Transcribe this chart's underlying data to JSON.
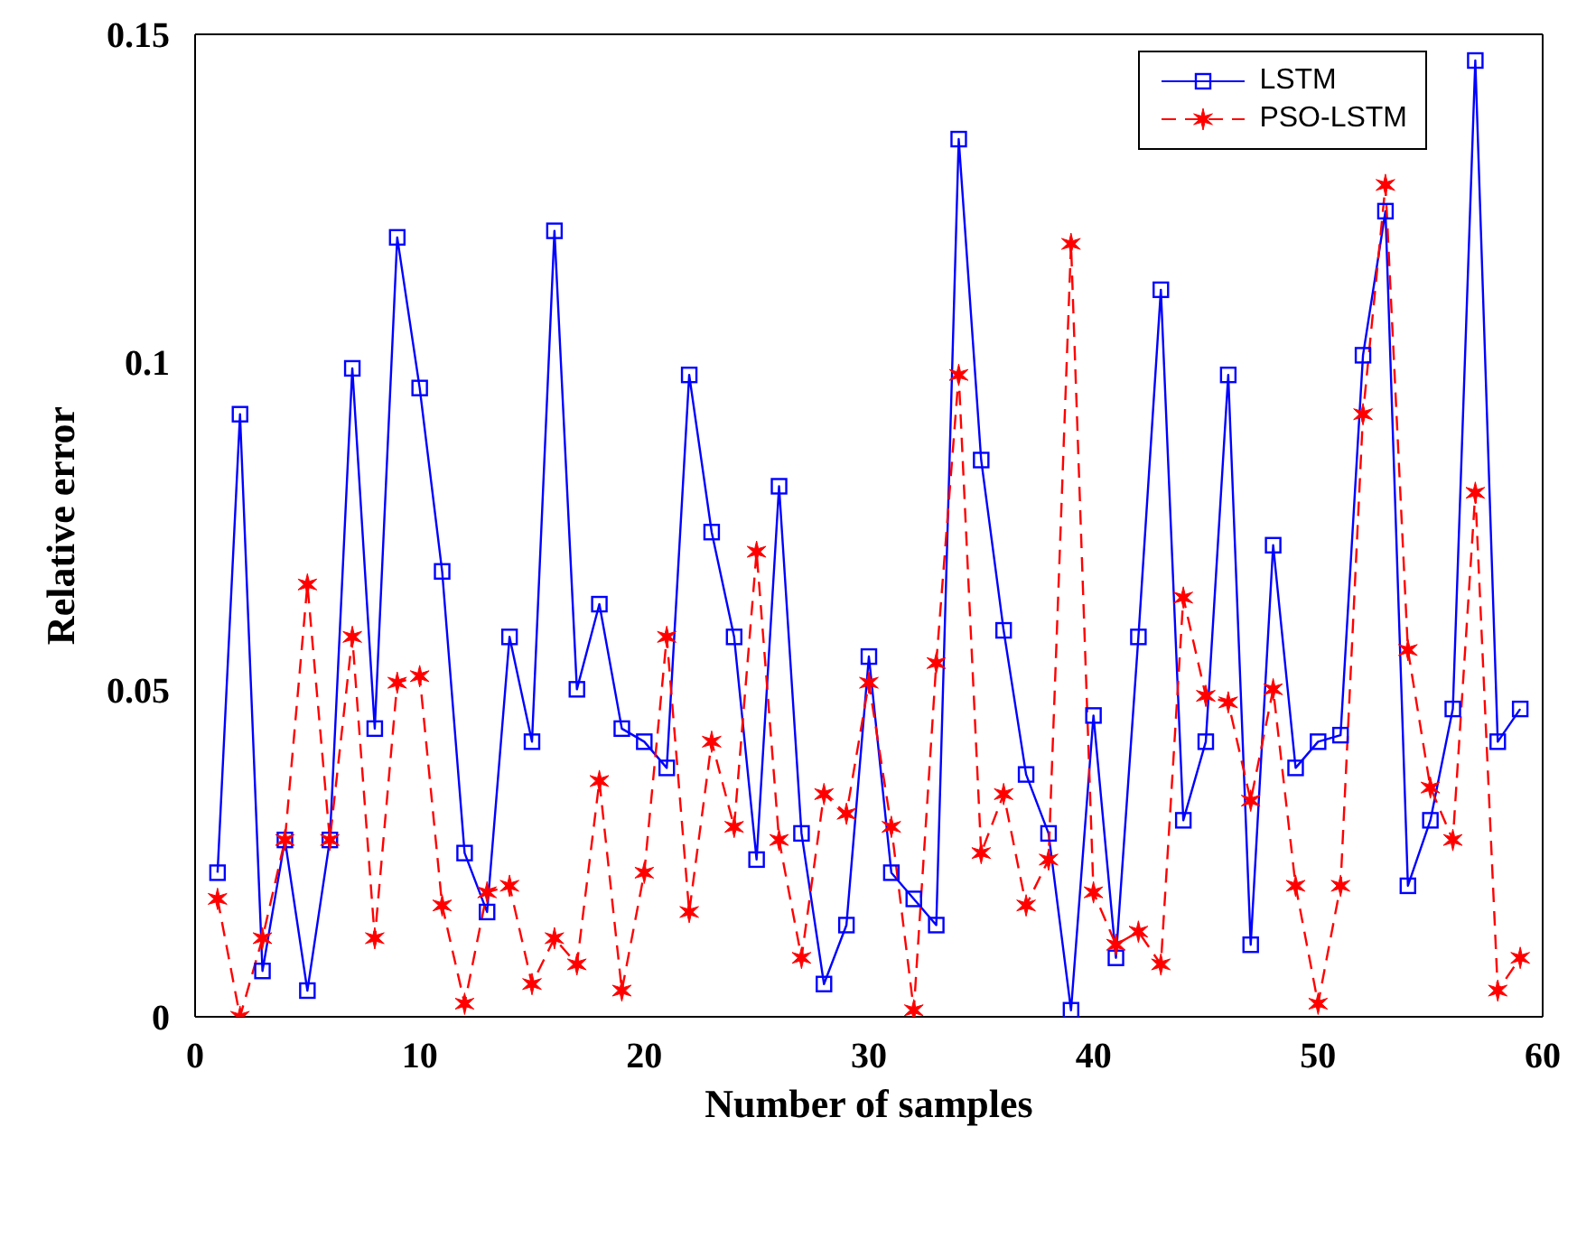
{
  "chart_data": {
    "type": "line",
    "xlabel": "Number of samples",
    "ylabel": "Relative error",
    "x": [
      1,
      2,
      3,
      4,
      5,
      6,
      7,
      8,
      9,
      10,
      11,
      12,
      13,
      14,
      15,
      16,
      17,
      18,
      19,
      20,
      21,
      22,
      23,
      24,
      25,
      26,
      27,
      28,
      29,
      30,
      31,
      32,
      33,
      34,
      35,
      36,
      37,
      38,
      39,
      40,
      41,
      42,
      43,
      44,
      45,
      46,
      47,
      48,
      49,
      50,
      51,
      52,
      53,
      54,
      55,
      56,
      57,
      58,
      59
    ],
    "xlim": [
      0,
      60
    ],
    "xticks": [
      0,
      10,
      20,
      30,
      40,
      50,
      60
    ],
    "ylim": [
      0,
      0.15
    ],
    "yticks": [
      0,
      0.05,
      0.1,
      0.15
    ],
    "grid": false,
    "legend": "top right",
    "series": [
      {
        "name": "LSTM",
        "color": "#0000ff",
        "marker": "square",
        "line_style": "solid",
        "values": [
          0.022,
          0.092,
          0.007,
          0.027,
          0.004,
          0.027,
          0.099,
          0.044,
          0.119,
          0.096,
          0.068,
          0.025,
          0.016,
          0.058,
          0.042,
          0.12,
          0.05,
          0.063,
          0.044,
          0.042,
          0.038,
          0.098,
          0.074,
          0.058,
          0.024,
          0.081,
          0.028,
          0.005,
          0.014,
          0.055,
          0.022,
          0.018,
          0.014,
          0.134,
          0.085,
          0.059,
          0.037,
          0.028,
          0.001,
          0.046,
          0.009,
          0.058,
          0.111,
          0.03,
          0.042,
          0.098,
          0.011,
          0.072,
          0.038,
          0.042,
          0.043,
          0.101,
          0.123,
          0.02,
          0.03,
          0.047,
          0.146,
          0.042,
          0.047
        ]
      },
      {
        "name": "PSO-LSTM",
        "color": "#ff0000",
        "marker": "cross",
        "line_style": "dashed",
        "values": [
          0.018,
          0.0,
          0.012,
          0.027,
          0.066,
          0.027,
          0.058,
          0.012,
          0.051,
          0.052,
          0.017,
          0.002,
          0.019,
          0.02,
          0.005,
          0.012,
          0.008,
          0.036,
          0.004,
          0.022,
          0.058,
          0.016,
          0.042,
          0.029,
          0.071,
          0.027,
          0.009,
          0.034,
          0.031,
          0.051,
          0.029,
          0.001,
          0.054,
          0.098,
          0.025,
          0.034,
          0.017,
          0.024,
          0.118,
          0.019,
          0.011,
          0.013,
          0.008,
          0.064,
          0.049,
          0.048,
          0.033,
          0.05,
          0.02,
          0.002,
          0.02,
          0.092,
          0.127,
          0.056,
          0.035,
          0.027,
          0.08,
          0.004,
          0.009
        ]
      }
    ]
  }
}
